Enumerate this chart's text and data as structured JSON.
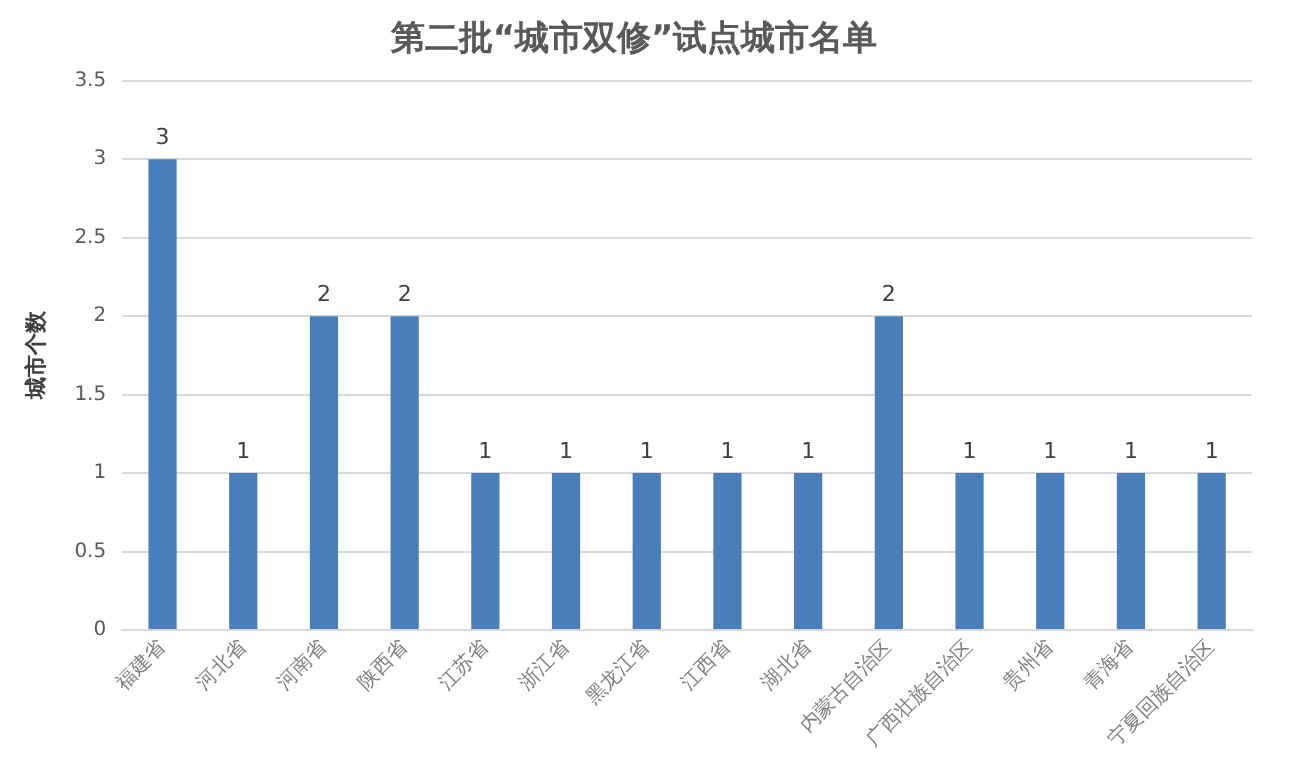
{
  "chart_data": {
    "type": "bar",
    "title": "第二批“城市双修”试点城市名单",
    "ylabel": "城市个数",
    "categories": [
      "福建省",
      "河北省",
      "河南省",
      "陕西省",
      "江苏省",
      "浙江省",
      "黑龙江省",
      "江西省",
      "湖北省",
      "内蒙古自治区",
      "广西壮族自治区",
      "贵州省",
      "青海省",
      "宁夏回族自治区"
    ],
    "values": [
      3,
      1,
      2,
      2,
      1,
      1,
      1,
      1,
      1,
      2,
      1,
      1,
      1,
      1
    ],
    "color": "#4a7ebb",
    "ylim": [
      0,
      3.5
    ],
    "yticks": [
      0,
      0.5,
      1,
      1.5,
      2,
      2.5,
      3,
      3.5
    ],
    "grid": "y",
    "data_labels": true,
    "legend": false
  }
}
